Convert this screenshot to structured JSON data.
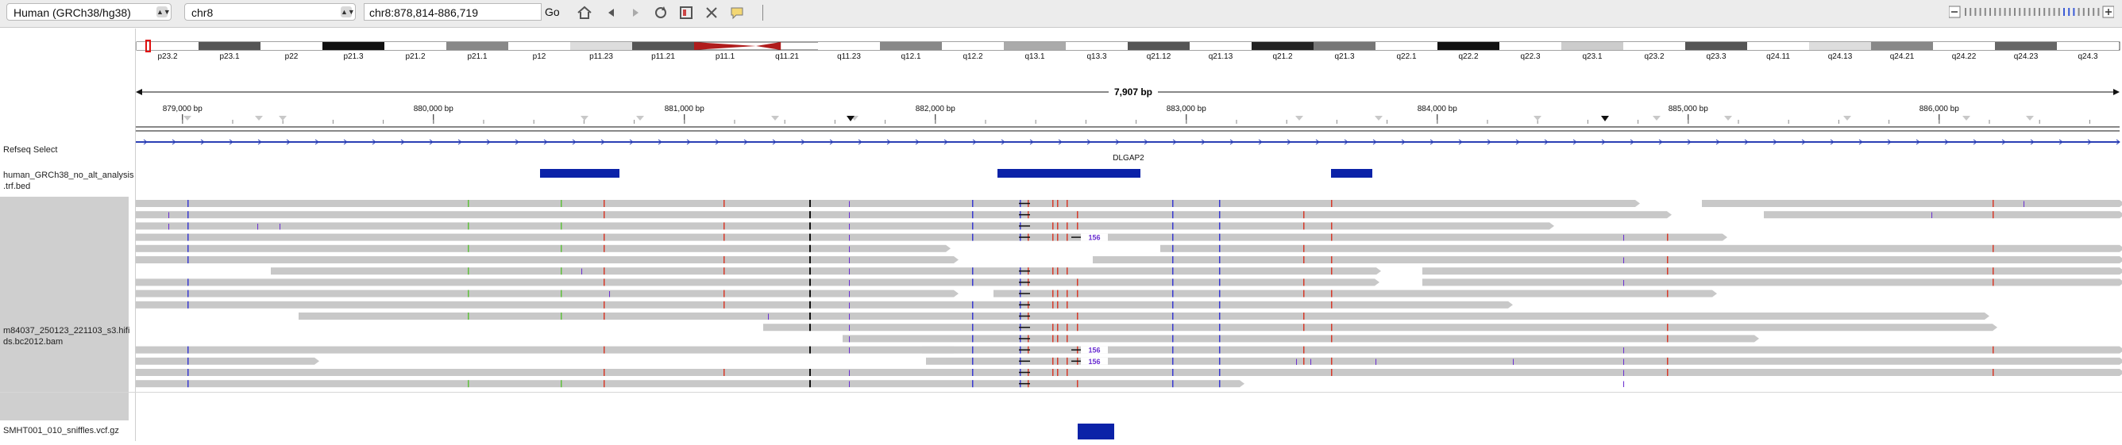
{
  "toolbar": {
    "genome": "Human (GRCh38/hg38)",
    "chromosome": "chr8",
    "locus": "chr8:878,814-886,719",
    "go_label": "Go",
    "icons": [
      "home-icon",
      "back-icon",
      "forward-icon",
      "refresh-icon",
      "roi-icon",
      "resize-icon",
      "popup-info-icon"
    ]
  },
  "ideogram": {
    "bands": [
      "p23.2",
      "p23.1",
      "p22",
      "p21.3",
      "p21.2",
      "p21.1",
      "p12",
      "p11.23",
      "p11.21",
      "p11.1",
      "q11.21",
      "q11.23",
      "q12.1",
      "q12.2",
      "q13.1",
      "q13.3",
      "q21.12",
      "q21.13",
      "q21.2",
      "q21.3",
      "q22.1",
      "q22.2",
      "q22.3",
      "q23.1",
      "q23.2",
      "q23.3",
      "q24.11",
      "q24.13",
      "q24.21",
      "q24.22",
      "q24.23",
      "q24.3"
    ]
  },
  "ruler": {
    "span_label": "7,907 bp",
    "ticks": [
      "879,000 bp",
      "880,000 bp",
      "881,000 bp",
      "882,000 bp",
      "883,000 bp",
      "884,000 bp",
      "885,000 bp",
      "886,000 bp"
    ]
  },
  "tracks": {
    "refseq": "Refseq Select",
    "bed": "human_GRCh38_no_alt_analysis\n.trf.bed",
    "bam": "m84037_250123_221103_s3.hifi\nds.bc2012.bam",
    "vcf": "SMHT001_010_sniffles.vcf.gz"
  },
  "gene": {
    "name": "DLGAP2"
  },
  "insertion_labels": [
    "156",
    "156",
    "156"
  ],
  "colors": {
    "read": "#c8c8c8",
    "feature": "#0b22a8",
    "mismatch_red": "#d63a2a",
    "mismatch_green": "#5fbf3c",
    "insertion": "#6a2fd0",
    "gene_line": "#2b3fb5"
  }
}
